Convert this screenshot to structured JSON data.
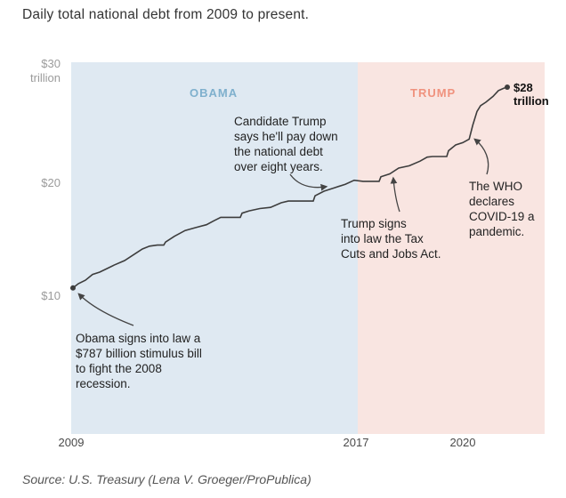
{
  "title": "Daily total national debt from 2009 to present.",
  "source": "Source: U.S. Treasury (Lena V. Groeger/ProPublica)",
  "annotations": {
    "stimulus": "Obama signs into law a\n$787 billion stimulus bill\nto fight the 2008\nrecession.",
    "candidate_trump": "Candidate Trump\nsays he'll pay down\nthe national debt\nover eight years.",
    "tax_cuts": "Trump signs\ninto law the Tax\nCuts and Jobs Act.",
    "who_pandemic": "The WHO\ndeclares\nCOVID-19 a\npandemic.",
    "end_value": "$28\ntrillion"
  },
  "chart_data": {
    "type": "line",
    "title": "Daily total national debt from 2009 to present.",
    "unit": "trillions of USD",
    "grid": false,
    "xlim": [
      2009,
      2022.3
    ],
    "ylim": [
      0,
      31
    ],
    "y_ticks": [
      {
        "value": 30,
        "label": "$30\ntrillion"
      },
      {
        "value": 20,
        "label": "$20"
      },
      {
        "value": 10,
        "label": "$10"
      }
    ],
    "x_ticks": [
      {
        "value": 2009,
        "label": "2009"
      },
      {
        "value": 2017,
        "label": "2017"
      },
      {
        "value": 2020,
        "label": "2020"
      }
    ],
    "eras": [
      {
        "name": "OBAMA",
        "start": 2009,
        "end": 2017.05,
        "band_color": "#dfe9f2",
        "label_color": "#7fb0cd"
      },
      {
        "name": "TRUMP",
        "start": 2017.05,
        "end": 2022.3,
        "band_color": "#f9e5e1",
        "label_color": "#f0927e"
      }
    ],
    "series": [
      {
        "name": "Total national debt",
        "color": "#3d3d3d",
        "points": [
          [
            2009.05,
            10.63
          ],
          [
            2009.2,
            11.0
          ],
          [
            2009.4,
            11.3
          ],
          [
            2009.6,
            11.8
          ],
          [
            2009.8,
            12.0
          ],
          [
            2010.0,
            12.3
          ],
          [
            2010.2,
            12.6
          ],
          [
            2010.5,
            13.0
          ],
          [
            2010.8,
            13.6
          ],
          [
            2011.0,
            14.0
          ],
          [
            2011.2,
            14.25
          ],
          [
            2011.42,
            14.34
          ],
          [
            2011.6,
            14.34
          ],
          [
            2011.65,
            14.6
          ],
          [
            2011.9,
            15.1
          ],
          [
            2012.2,
            15.6
          ],
          [
            2012.5,
            15.85
          ],
          [
            2012.8,
            16.1
          ],
          [
            2013.0,
            16.43
          ],
          [
            2013.2,
            16.74
          ],
          [
            2013.75,
            16.74
          ],
          [
            2013.8,
            17.1
          ],
          [
            2014.0,
            17.3
          ],
          [
            2014.3,
            17.5
          ],
          [
            2014.6,
            17.6
          ],
          [
            2014.9,
            18.0
          ],
          [
            2015.1,
            18.15
          ],
          [
            2015.8,
            18.15
          ],
          [
            2015.85,
            18.6
          ],
          [
            2016.1,
            19.0
          ],
          [
            2016.4,
            19.3
          ],
          [
            2016.7,
            19.6
          ],
          [
            2016.95,
            19.95
          ],
          [
            2017.2,
            19.85
          ],
          [
            2017.65,
            19.85
          ],
          [
            2017.7,
            20.25
          ],
          [
            2017.95,
            20.5
          ],
          [
            2018.2,
            21.0
          ],
          [
            2018.5,
            21.2
          ],
          [
            2018.8,
            21.6
          ],
          [
            2019.0,
            21.95
          ],
          [
            2019.15,
            22.0
          ],
          [
            2019.55,
            22.0
          ],
          [
            2019.6,
            22.5
          ],
          [
            2019.8,
            23.0
          ],
          [
            2020.0,
            23.2
          ],
          [
            2020.18,
            23.5
          ],
          [
            2020.28,
            24.7
          ],
          [
            2020.4,
            25.9
          ],
          [
            2020.5,
            26.4
          ],
          [
            2020.65,
            26.7
          ],
          [
            2020.85,
            27.2
          ],
          [
            2021.0,
            27.7
          ],
          [
            2021.15,
            27.9
          ],
          [
            2021.25,
            28.0
          ]
        ]
      }
    ],
    "start_point": {
      "year": 2009.05,
      "value": 10.63
    },
    "end_point": {
      "year": 2021.25,
      "value": 28,
      "label": "$28 trillion"
    }
  }
}
